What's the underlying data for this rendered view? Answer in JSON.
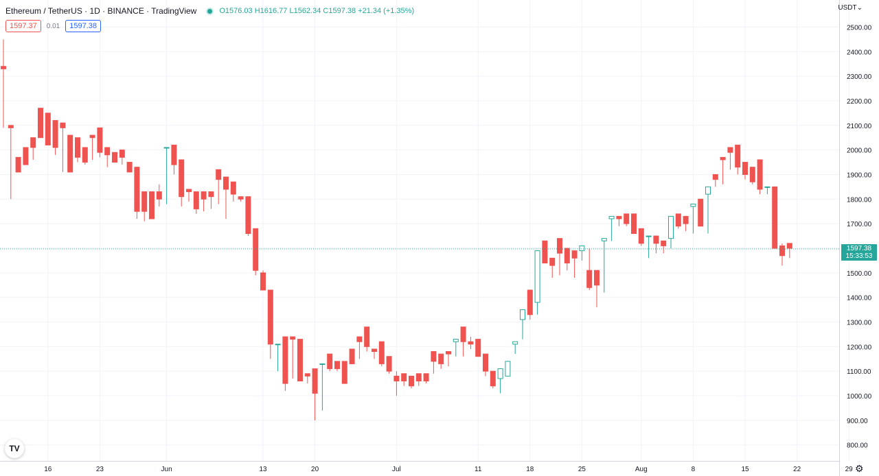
{
  "header": {
    "symbol": "Ethereum / TetherUS · 1D · BINANCE · TradingView",
    "ohlc": "O1576.03 H1616.77 L1562.34 C1597.38 +21.34 (+1.35%)"
  },
  "trade": {
    "sell": "1597.37",
    "spread": "0.01",
    "buy": "1597.38"
  },
  "currency": "USDT⌄",
  "last_price": {
    "value": "1597.38",
    "countdown": "15:33:53"
  },
  "colors": {
    "up": "#26a69a",
    "down": "#ef5350",
    "grid": "#f0f3fa",
    "axis_text": "#131722"
  },
  "icons": {
    "logo": "tradingview-logo",
    "settings": "gear-icon"
  },
  "chart_data": {
    "type": "candlestick",
    "title": "Ethereum / TetherUS · 1D · BINANCE · TradingView",
    "y_unit": "USDT",
    "ylim": [
      735,
      2610
    ],
    "y_ticks": [
      "2500.00",
      "2400.00",
      "2300.00",
      "2200.00",
      "2100.00",
      "2000.00",
      "1900.00",
      "1800.00",
      "1700.00",
      "1600.00",
      "1500.00",
      "1400.00",
      "1300.00",
      "1200.00",
      "1100.00",
      "1000.00",
      "900.00",
      "800.00"
    ],
    "x_ticks": [
      "16",
      "23",
      "Jun",
      "13",
      "20",
      "Jul",
      "11",
      "18",
      "25",
      "Aug",
      "8",
      "15",
      "22",
      "29"
    ],
    "x_tick_index": [
      6,
      13,
      22,
      35,
      42,
      53,
      64,
      71,
      78,
      86,
      93,
      100,
      107,
      114
    ],
    "grid": true,
    "candles": [
      [
        2450,
        2340,
        2330,
        2090
      ],
      [
        2080,
        2100,
        2090,
        1800
      ],
      [
        1960,
        1970,
        1910,
        1960
      ],
      [
        1960,
        2010,
        1940,
        1960
      ],
      [
        1960,
        2050,
        2010,
        2000
      ],
      [
        2050,
        2170,
        2050,
        2060
      ],
      [
        2140,
        2150,
        2020,
        2020
      ],
      [
        2080,
        2120,
        2010,
        1980
      ],
      [
        2090,
        2110,
        2090,
        1910
      ],
      [
        1920,
        2060,
        1910,
        2010
      ],
      [
        2040,
        2050,
        1970,
        1950
      ],
      [
        2000,
        2010,
        1950,
        1940
      ],
      [
        2050,
        2060,
        2050,
        1960
      ],
      [
        2060,
        2090,
        1990,
        1970
      ],
      [
        1970,
        2010,
        1980,
        1930
      ],
      [
        1990,
        1990,
        1950,
        1960
      ],
      [
        1960,
        2000,
        1970,
        1940
      ],
      [
        1940,
        1950,
        1910,
        1950
      ],
      [
        1900,
        1930,
        1750,
        1720
      ],
      [
        1770,
        1830,
        1750,
        1710
      ],
      [
        1800,
        1830,
        1720,
        1740
      ],
      [
        1860,
        1830,
        1800,
        1770
      ],
      [
        1930,
        2010,
        2010,
        1780
      ],
      [
        2000,
        2020,
        1940,
        1900
      ],
      [
        1930,
        1960,
        1810,
        1770
      ],
      [
        1830,
        1840,
        1830,
        1790
      ],
      [
        1800,
        1830,
        1760,
        1740
      ],
      [
        1760,
        1830,
        1800,
        1750
      ],
      [
        1800,
        1830,
        1810,
        1760
      ],
      [
        1830,
        1920,
        1880,
        1780
      ],
      [
        1880,
        1890,
        1840,
        1720
      ],
      [
        1850,
        1870,
        1820,
        1790
      ],
      [
        1810,
        1810,
        1800,
        1790
      ],
      [
        1810,
        1810,
        1660,
        1650
      ],
      [
        1660,
        1680,
        1510,
        1490
      ],
      [
        1510,
        1500,
        1430,
        1430
      ],
      [
        1430,
        1430,
        1210,
        1150
      ],
      [
        1210,
        1210,
        1210,
        1100
      ],
      [
        1230,
        1240,
        1050,
        1020
      ],
      [
        1210,
        1240,
        1230,
        1070
      ],
      [
        1230,
        1230,
        1060,
        1060
      ],
      [
        1060,
        1090,
        1080,
        1050
      ],
      [
        1100,
        1110,
        1010,
        900
      ],
      [
        1010,
        1130,
        1130,
        940
      ],
      [
        1110,
        1170,
        1110,
        1100
      ],
      [
        1120,
        1140,
        1110,
        1100
      ],
      [
        1120,
        1140,
        1050,
        1050
      ],
      [
        1130,
        1190,
        1130,
        1130
      ],
      [
        1150,
        1240,
        1220,
        1190
      ],
      [
        1240,
        1280,
        1200,
        1180
      ],
      [
        1190,
        1190,
        1180,
        1150
      ],
      [
        1190,
        1220,
        1130,
        1120
      ],
      [
        1130,
        1160,
        1100,
        1090
      ],
      [
        1100,
        1080,
        1060,
        1000
      ],
      [
        1070,
        1090,
        1060,
        1040
      ],
      [
        1060,
        1080,
        1040,
        1030
      ],
      [
        1080,
        1090,
        1060,
        1040
      ],
      [
        1060,
        1090,
        1060,
        1050
      ],
      [
        1130,
        1180,
        1140,
        1090
      ],
      [
        1140,
        1170,
        1130,
        1110
      ],
      [
        1120,
        1180,
        1170,
        1130
      ],
      [
        1180,
        1220,
        1230,
        1160
      ],
      [
        1220,
        1280,
        1220,
        1160
      ],
      [
        1240,
        1220,
        1210,
        1190
      ],
      [
        1210,
        1230,
        1160,
        1160
      ],
      [
        1170,
        1170,
        1100,
        1080
      ],
      [
        1100,
        1100,
        1040,
        1030
      ],
      [
        1050,
        1070,
        1110,
        1010
      ],
      [
        1130,
        1080,
        1140,
        1080
      ],
      [
        1190,
        1210,
        1220,
        1170
      ],
      [
        1250,
        1310,
        1350,
        1230
      ],
      [
        1350,
        1430,
        1330,
        1310
      ],
      [
        1340,
        1380,
        1590,
        1330
      ],
      [
        1590,
        1630,
        1540,
        1550
      ],
      [
        1550,
        1560,
        1530,
        1480
      ],
      [
        1530,
        1640,
        1580,
        1490
      ],
      [
        1580,
        1600,
        1540,
        1510
      ],
      [
        1530,
        1590,
        1560,
        1480
      ],
      [
        1560,
        1590,
        1610,
        1550
      ],
      [
        1600,
        1510,
        1440,
        1430
      ],
      [
        1440,
        1510,
        1450,
        1360
      ],
      [
        1450,
        1630,
        1640,
        1420
      ],
      [
        1640,
        1720,
        1730,
        1630
      ],
      [
        1720,
        1730,
        1720,
        1690
      ],
      [
        1720,
        1740,
        1700,
        1690
      ],
      [
        1700,
        1740,
        1660,
        1660
      ],
      [
        1660,
        1680,
        1620,
        1610
      ],
      [
        1620,
        1650,
        1650,
        1560
      ],
      [
        1630,
        1650,
        1620,
        1580
      ],
      [
        1620,
        1630,
        1610,
        1580
      ],
      [
        1620,
        1640,
        1730,
        1600
      ],
      [
        1730,
        1740,
        1690,
        1680
      ],
      [
        1690,
        1730,
        1700,
        1670
      ],
      [
        1700,
        1770,
        1780,
        1660
      ],
      [
        1780,
        1800,
        1690,
        1690
      ],
      [
        1710,
        1820,
        1850,
        1660
      ],
      [
        1850,
        1900,
        1880,
        1870
      ],
      [
        1880,
        1970,
        1960,
        1860
      ],
      [
        1960,
        2010,
        1990,
        1920
      ],
      [
        1990,
        2020,
        1930,
        1900
      ],
      [
        1930,
        1950,
        1900,
        1880
      ],
      [
        1890,
        1930,
        1870,
        1860
      ],
      [
        1870,
        1960,
        1840,
        1820
      ],
      [
        1840,
        1850,
        1850,
        1820
      ],
      [
        1850,
        1850,
        1600,
        1600
      ],
      [
        1620,
        1610,
        1570,
        1530
      ],
      [
        1580,
        1620,
        1600,
        1560
      ]
    ],
    "last": 1597.38
  }
}
